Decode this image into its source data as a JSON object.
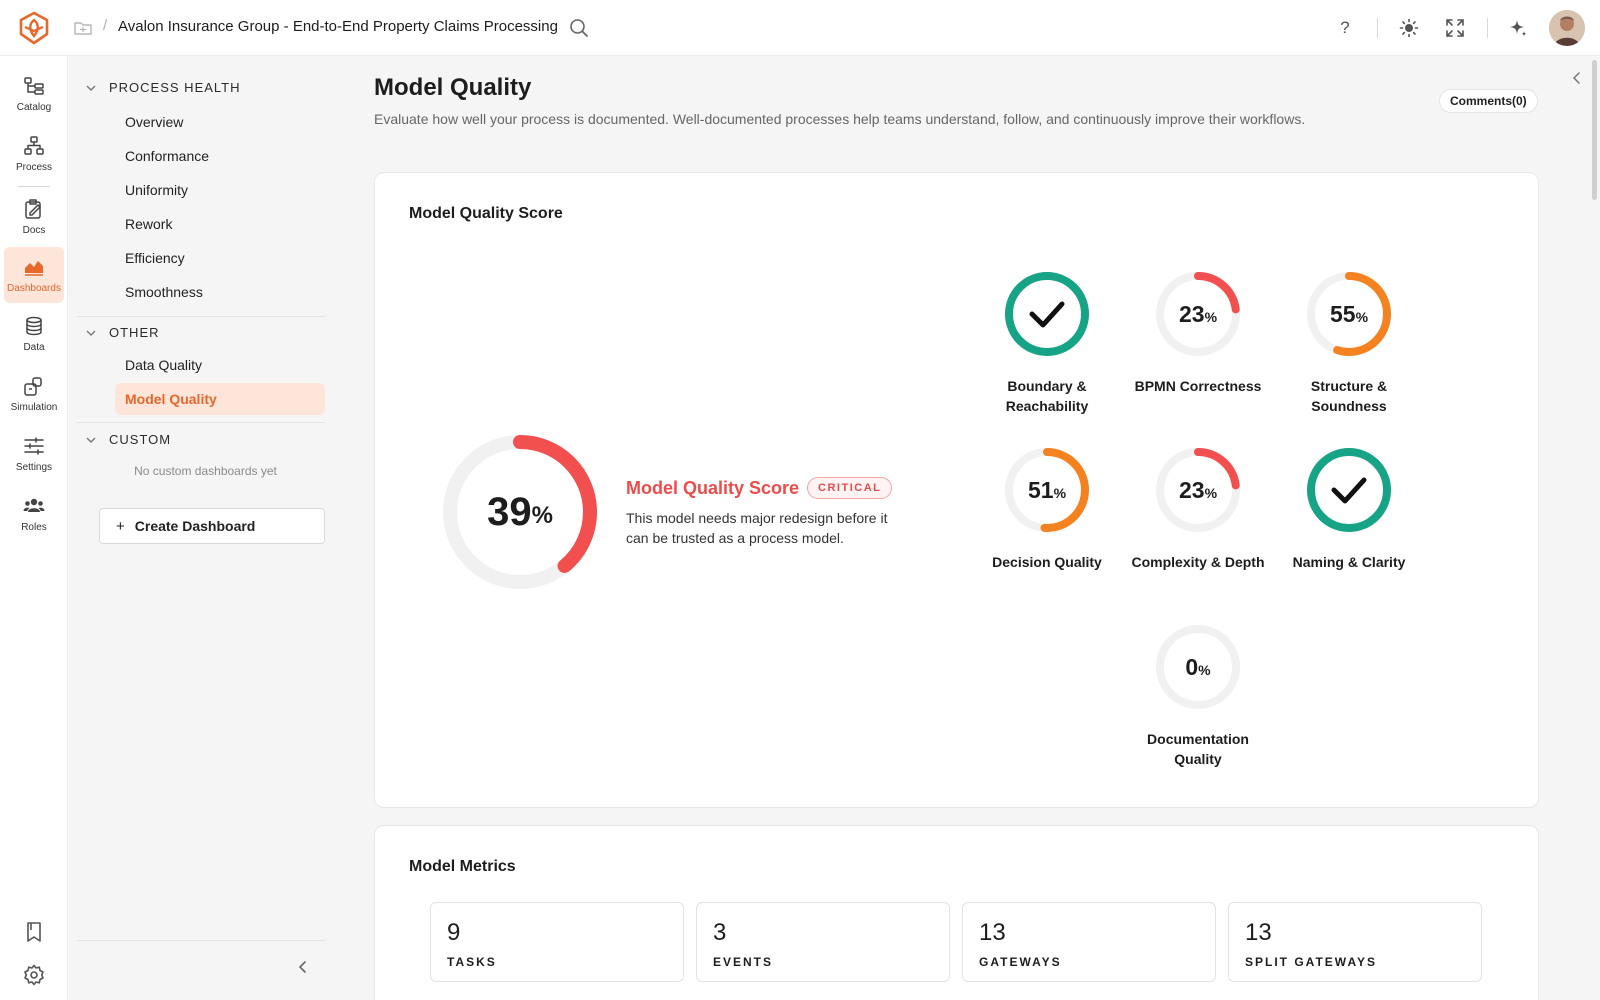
{
  "header": {
    "title": "Avalon Insurance Group - End-to-End Property Claims Processing",
    "separator": "/",
    "help_label": "?"
  },
  "rail": {
    "items": [
      {
        "label": "Catalog",
        "icon": "catalog-icon"
      },
      {
        "label": "Process",
        "icon": "process-icon"
      },
      {
        "label": "Docs",
        "icon": "docs-icon"
      },
      {
        "label": "Dashboards",
        "icon": "dashboards-icon"
      },
      {
        "label": "Data",
        "icon": "database-icon"
      },
      {
        "label": "Simulation",
        "icon": "simulation-icon"
      },
      {
        "label": "Settings",
        "icon": "sliders-icon"
      },
      {
        "label": "Roles",
        "icon": "users-icon"
      }
    ],
    "active": "Dashboards"
  },
  "nav": {
    "sections": [
      {
        "title": "PROCESS HEALTH",
        "items": [
          "Overview",
          "Conformance",
          "Uniformity",
          "Rework",
          "Efficiency",
          "Smoothness"
        ]
      },
      {
        "title": "OTHER",
        "items": [
          "Data Quality",
          "Model Quality"
        ]
      },
      {
        "title": "CUSTOM",
        "empty": "No custom dashboards yet"
      }
    ],
    "active_item": "Model Quality",
    "create_plus": "+",
    "create_label": "Create Dashboard"
  },
  "page": {
    "title": "Model Quality",
    "description": "Evaluate how well your process is documented. Well-documented processes help teams understand, follow, and continuously improve their workflows.",
    "comments_label": "Comments(0)"
  },
  "score_card": {
    "title": "Model Quality Score",
    "score": 39,
    "percent_sign": "%",
    "score_name": "Model Quality Score",
    "badge": "CRITICAL",
    "description": "This model needs major redesign before it can be trusted as a process model.",
    "colors": {
      "critical": "#f24f4f",
      "warning": "#f58220",
      "good": "#17a385",
      "track": "#f1f1f2"
    },
    "gauges": [
      {
        "label": "Boundary & Reachability",
        "value": 100,
        "passed": true
      },
      {
        "label": "BPMN Correctness",
        "value": 23,
        "passed": false
      },
      {
        "label": "Structure & Soundness",
        "value": 55,
        "passed": false
      },
      {
        "label": "Decision Quality",
        "value": 51,
        "passed": false
      },
      {
        "label": "Complexity & Depth",
        "value": 23,
        "passed": false
      },
      {
        "label": "Naming & Clarity",
        "value": 100,
        "passed": true
      },
      {
        "label": "Documentation Quality",
        "value": 0,
        "passed": false
      }
    ]
  },
  "metrics_card": {
    "title": "Model Metrics",
    "metrics": [
      {
        "value": "9",
        "label": "TASKS"
      },
      {
        "value": "3",
        "label": "EVENTS"
      },
      {
        "value": "13",
        "label": "GATEWAYS"
      },
      {
        "value": "13",
        "label": "SPLIT GATEWAYS"
      }
    ]
  }
}
